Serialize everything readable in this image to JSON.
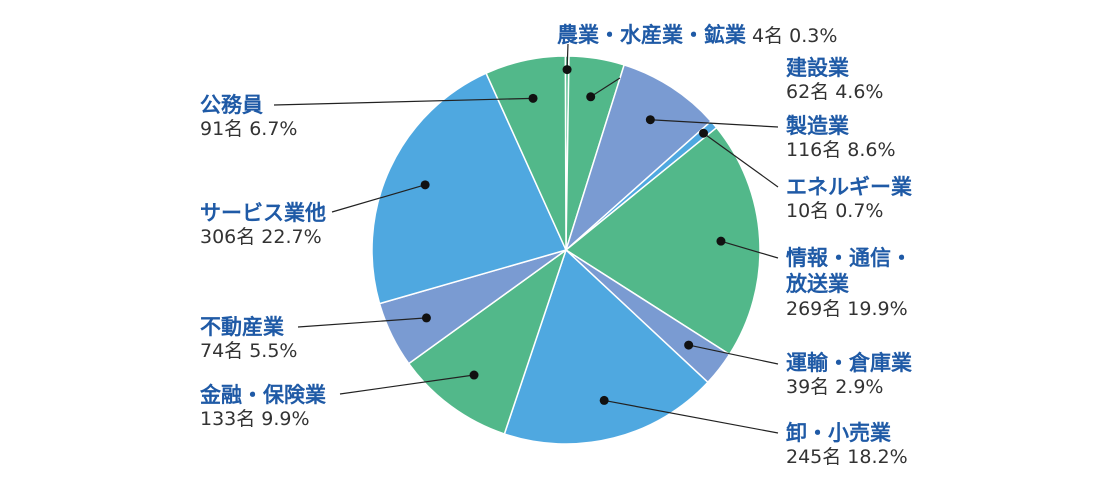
{
  "chart_data": {
    "type": "pie",
    "unit": "名",
    "slices": [
      {
        "label": "農業・水産業・鉱業",
        "count": 4,
        "value": 0.3,
        "display": "4名 0.3%",
        "color": "#52b88a"
      },
      {
        "label": "建設業",
        "count": 62,
        "value": 4.6,
        "display": "62名 4.6%",
        "color": "#52b88a"
      },
      {
        "label": "製造業",
        "count": 116,
        "value": 8.6,
        "display": "116名 8.6%",
        "color": "#7a9bd2"
      },
      {
        "label": "エネルギー業",
        "count": 10,
        "value": 0.7,
        "display": "10名 0.7%",
        "color": "#4fa8e0"
      },
      {
        "label": "情報・通信・放送業",
        "label_lines": [
          "情報・通信・",
          "放送業"
        ],
        "count": 269,
        "value": 19.9,
        "display": "269名 19.9%",
        "color": "#52b88a"
      },
      {
        "label": "運輸・倉庫業",
        "count": 39,
        "value": 2.9,
        "display": "39名 2.9%",
        "color": "#7a9bd2"
      },
      {
        "label": "卸・小売業",
        "count": 245,
        "value": 18.2,
        "display": "245名 18.2%",
        "color": "#4fa8e0"
      },
      {
        "label": "金融・保険業",
        "count": 133,
        "value": 9.9,
        "display": "133名 9.9%",
        "color": "#52b88a"
      },
      {
        "label": "不動産業",
        "count": 74,
        "value": 5.5,
        "display": "74名 5.5%",
        "color": "#7a9bd2"
      },
      {
        "label": "サービス業他",
        "count": 306,
        "value": 22.7,
        "display": "306名 22.7%",
        "color": "#4fa8e0"
      },
      {
        "label": "公務員",
        "count": 91,
        "value": 6.7,
        "display": "91名 6.7%",
        "color": "#52b88a"
      }
    ]
  }
}
